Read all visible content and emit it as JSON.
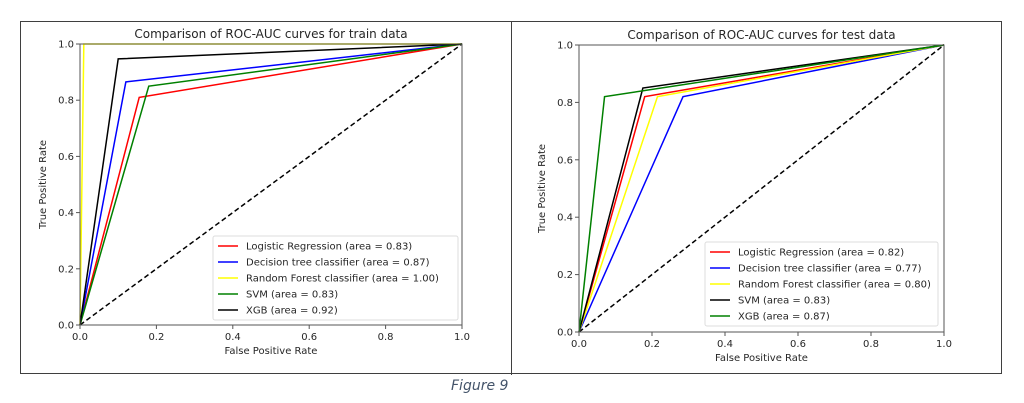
{
  "figure_caption": "Figure 9",
  "chart_data": [
    {
      "id": "train",
      "type": "line",
      "title": "Comparison of ROC-AUC curves for train data",
      "xlabel": "False Positive Rate",
      "ylabel": "True Positive Rate",
      "xlim": [
        0.0,
        1.0
      ],
      "ylim": [
        0.0,
        1.0
      ],
      "xticks": [
        "0.0",
        "0.2",
        "0.4",
        "0.6",
        "0.8",
        "1.0"
      ],
      "yticks": [
        "0.0",
        "0.2",
        "0.4",
        "0.6",
        "0.8",
        "1.0"
      ],
      "grid": false,
      "legend_position": "lower-right",
      "baseline": {
        "x": [
          0,
          1
        ],
        "y": [
          0,
          1
        ],
        "color": "#000000",
        "style": "dashed"
      },
      "series": [
        {
          "name": "Logistic Regression (area = 0.83)",
          "color": "#ff0000",
          "x": [
            0,
            0.155,
            1
          ],
          "y": [
            0,
            0.81,
            1
          ]
        },
        {
          "name": "Decision tree classifier (area = 0.87)",
          "color": "#0000ff",
          "x": [
            0,
            0.12,
            1
          ],
          "y": [
            0,
            0.865,
            1
          ]
        },
        {
          "name": "Random Forest classifier (area = 1.00)",
          "color": "#ffff00",
          "x": [
            0,
            0.01,
            1
          ],
          "y": [
            0,
            1.0,
            1
          ]
        },
        {
          "name": "SVM (area = 0.83)",
          "color": "#008000",
          "x": [
            0,
            0.18,
            1
          ],
          "y": [
            0,
            0.85,
            1
          ]
        },
        {
          "name": "XGB (area = 0.92)",
          "color": "#000000",
          "x": [
            0,
            0.1,
            1
          ],
          "y": [
            0,
            0.947,
            1
          ]
        }
      ]
    },
    {
      "id": "test",
      "type": "line",
      "title": "Comparison of ROC-AUC curves for test data",
      "xlabel": "False Positive Rate",
      "ylabel": "True Positive Rate",
      "xlim": [
        0.0,
        1.0
      ],
      "ylim": [
        0.0,
        1.0
      ],
      "xticks": [
        "0.0",
        "0.2",
        "0.4",
        "0.6",
        "0.8",
        "1.0"
      ],
      "yticks": [
        "0.0",
        "0.2",
        "0.4",
        "0.6",
        "0.8",
        "1.0"
      ],
      "grid": false,
      "legend_position": "lower-right",
      "baseline": {
        "x": [
          0,
          1
        ],
        "y": [
          0,
          1
        ],
        "color": "#000000",
        "style": "dashed"
      },
      "series": [
        {
          "name": "Logistic Regression  (area = 0.82)",
          "color": "#ff0000",
          "x": [
            0,
            0.18,
            1
          ],
          "y": [
            0,
            0.82,
            1
          ]
        },
        {
          "name": "Decision tree classifier (area = 0.77)",
          "color": "#0000ff",
          "x": [
            0,
            0.285,
            1
          ],
          "y": [
            0,
            0.82,
            1
          ]
        },
        {
          "name": "Random Forest classifier (area = 0.80)",
          "color": "#ffff00",
          "x": [
            0,
            0.215,
            1
          ],
          "y": [
            0,
            0.82,
            1
          ]
        },
        {
          "name": "SVM (area = 0.83)",
          "color": "#000000",
          "x": [
            0,
            0.175,
            1
          ],
          "y": [
            0,
            0.85,
            1
          ]
        },
        {
          "name": "XGB (area = 0.87)",
          "color": "#008000",
          "x": [
            0,
            0.07,
            1
          ],
          "y": [
            0,
            0.82,
            1
          ]
        }
      ]
    }
  ]
}
